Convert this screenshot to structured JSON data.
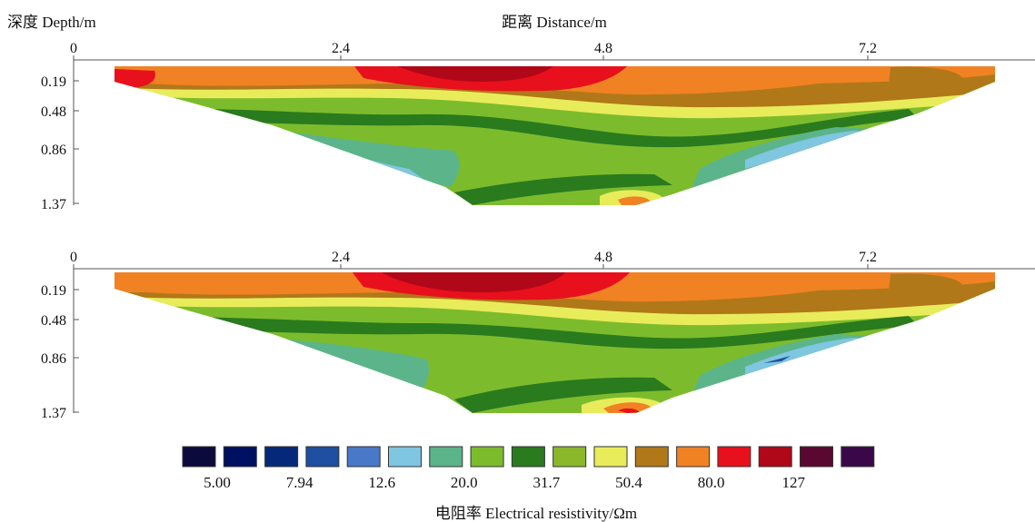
{
  "y_title": "深度 Depth/m",
  "x_title": "距离 Distance/m",
  "colorbar_title": "电阻率 Electrical resistivity/Ωm",
  "chart_data": [
    {
      "type": "heatmap",
      "panel": "upper",
      "xlabel": "距离 Distance/m",
      "ylabel": "深度 Depth/m",
      "x_ticks": [
        0,
        2.4,
        4.8,
        7.2
      ],
      "y_ticks": [
        0.19,
        0.48,
        0.86,
        1.37
      ],
      "xlim": [
        0,
        8.8
      ],
      "ylim": [
        1.37,
        0
      ],
      "section_shape": "inverted trapezoid pseudo-section (Wenner-type)",
      "layers": [
        {
          "depth_range": [
            0.0,
            0.3
          ],
          "resistivity": "80-127",
          "description": "surface high-resistivity band (red/orange), maximum near 3.5 m"
        },
        {
          "depth_range": [
            0.3,
            0.5
          ],
          "resistivity": "50.4",
          "description": "transition band"
        },
        {
          "depth_range": [
            0.5,
            0.7
          ],
          "resistivity": "31.7",
          "description": "dark green low-resistivity layer"
        },
        {
          "depth_range": [
            0.7,
            1.37
          ],
          "resistivity": "20.0-31.7",
          "description": "green / teal lower zone"
        }
      ]
    },
    {
      "type": "heatmap",
      "panel": "lower",
      "xlabel": "距离 Distance/m",
      "ylabel": "深度 Depth/m",
      "x_ticks": [
        0,
        2.4,
        4.8,
        7.2
      ],
      "y_ticks": [
        0.19,
        0.48,
        0.86,
        1.37
      ],
      "xlim": [
        0,
        8.8
      ],
      "ylim": [
        1.37,
        0
      ],
      "section_shape": "inverted trapezoid pseudo-section (Wenner-type)",
      "layers": [
        {
          "depth_range": [
            0.0,
            0.3
          ],
          "resistivity": "80-127",
          "description": "surface high-resistivity band (red/orange), maximum near 3.5 m"
        },
        {
          "depth_range": [
            0.3,
            0.5
          ],
          "resistivity": "50.4",
          "description": "transition band"
        },
        {
          "depth_range": [
            0.5,
            0.7
          ],
          "resistivity": "31.7",
          "description": "dark green low-resistivity layer"
        },
        {
          "depth_range": [
            0.7,
            1.37
          ],
          "resistivity": "20.0-31.7",
          "description": "green / teal lower zone"
        }
      ]
    }
  ],
  "colorbar": {
    "colors": [
      "#0a0a3c",
      "#001060",
      "#05287a",
      "#1f4fa0",
      "#4a78c8",
      "#7fc6e0",
      "#5cb48a",
      "#7cbc2c",
      "#2a7a1e",
      "#8ab82a",
      "#e8ec5a",
      "#b07818",
      "#f08224",
      "#e8101c",
      "#b00818",
      "#5a0830",
      "#3a0848"
    ],
    "labels": [
      "5.00",
      "7.94",
      "12.6",
      "20.0",
      "31.7",
      "50.4",
      "80.0",
      "127"
    ]
  }
}
